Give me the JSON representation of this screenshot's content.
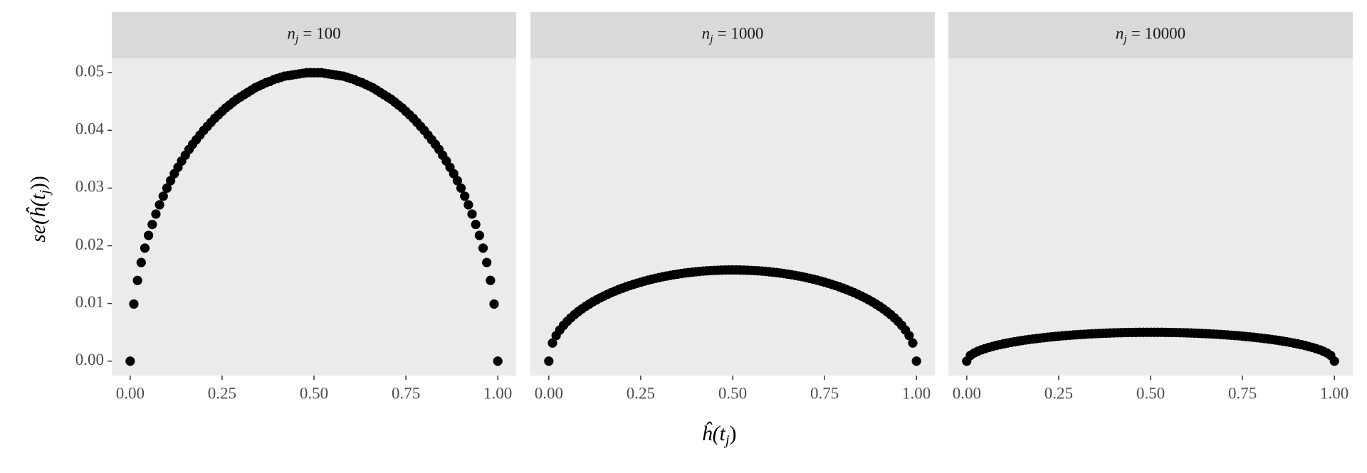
{
  "chart_data": [
    {
      "type": "scatter",
      "title": {
        "symbol": "n",
        "subscript": "j",
        "text": "= 100"
      },
      "color": "#000000",
      "x": [
        0,
        0.01,
        0.02,
        0.03,
        0.04,
        0.05,
        0.06,
        0.07,
        0.08,
        0.09,
        0.1,
        0.11,
        0.12,
        0.13,
        0.14,
        0.15,
        0.16,
        0.17,
        0.18,
        0.19,
        0.2,
        0.21,
        0.22,
        0.23,
        0.24,
        0.25,
        0.26,
        0.27,
        0.28,
        0.29,
        0.3,
        0.31,
        0.32,
        0.33,
        0.34,
        0.35,
        0.36,
        0.37,
        0.38,
        0.39,
        0.4,
        0.41,
        0.42,
        0.43,
        0.44,
        0.45,
        0.46,
        0.47,
        0.48,
        0.49,
        0.5,
        0.51,
        0.52,
        0.53,
        0.54,
        0.55,
        0.56,
        0.57,
        0.58,
        0.59,
        0.6,
        0.61,
        0.62,
        0.63,
        0.64,
        0.65,
        0.66,
        0.67,
        0.68,
        0.69,
        0.7,
        0.71,
        0.72,
        0.73,
        0.74,
        0.75,
        0.76,
        0.77,
        0.78,
        0.79,
        0.8,
        0.81,
        0.82,
        0.83,
        0.84,
        0.85,
        0.86,
        0.87,
        0.88,
        0.89,
        0.9,
        0.91,
        0.92,
        0.93,
        0.94,
        0.95,
        0.96,
        0.97,
        0.98,
        0.99,
        1
      ],
      "values": [
        0,
        0.0099,
        0.014,
        0.0171,
        0.0196,
        0.0218,
        0.0237,
        0.0255,
        0.0271,
        0.0286,
        0.03,
        0.0313,
        0.0325,
        0.0336,
        0.0347,
        0.0357,
        0.0367,
        0.0376,
        0.0384,
        0.0392,
        0.04,
        0.0407,
        0.0414,
        0.0421,
        0.0427,
        0.0433,
        0.0439,
        0.0444,
        0.0449,
        0.0454,
        0.0458,
        0.0462,
        0.0466,
        0.047,
        0.0474,
        0.0477,
        0.048,
        0.0483,
        0.0485,
        0.0488,
        0.049,
        0.0492,
        0.0494,
        0.0495,
        0.0496,
        0.0497,
        0.0498,
        0.0499,
        0.05,
        0.05,
        0.05,
        0.05,
        0.05,
        0.0499,
        0.0498,
        0.0497,
        0.0496,
        0.0495,
        0.0494,
        0.0492,
        0.049,
        0.0488,
        0.0485,
        0.0483,
        0.048,
        0.0477,
        0.0474,
        0.047,
        0.0466,
        0.0462,
        0.0458,
        0.0454,
        0.0449,
        0.0444,
        0.0439,
        0.0433,
        0.0427,
        0.0421,
        0.0414,
        0.0407,
        0.04,
        0.0392,
        0.0384,
        0.0376,
        0.0367,
        0.0357,
        0.0347,
        0.0336,
        0.0325,
        0.0313,
        0.03,
        0.0286,
        0.0271,
        0.0255,
        0.0237,
        0.0218,
        0.0196,
        0.0171,
        0.014,
        0.0099,
        0
      ],
      "xlim": [
        -0.05,
        1.05
      ],
      "xticks": [
        {
          "value": 0,
          "label": "0.00"
        },
        {
          "value": 0.25,
          "label": "0.25"
        },
        {
          "value": 0.5,
          "label": "0.50"
        },
        {
          "value": 0.75,
          "label": "0.75"
        },
        {
          "value": 1,
          "label": "1.00"
        }
      ],
      "ylim": [
        -0.0025,
        0.0525
      ],
      "yticks": [
        {
          "value": 0,
          "label": "0.00"
        },
        {
          "value": 0.01,
          "label": "0.01"
        },
        {
          "value": 0.02,
          "label": "0.02"
        },
        {
          "value": 0.03,
          "label": "0.03"
        },
        {
          "value": 0.04,
          "label": "0.04"
        },
        {
          "value": 0.05,
          "label": "0.05"
        }
      ]
    },
    {
      "type": "scatter",
      "title": {
        "symbol": "n",
        "subscript": "j",
        "text": "= 1000"
      },
      "color": "#000000",
      "x": [
        0,
        0.01,
        0.02,
        0.03,
        0.04,
        0.05,
        0.06,
        0.07,
        0.08,
        0.09,
        0.1,
        0.11,
        0.12,
        0.13,
        0.14,
        0.15,
        0.16,
        0.17,
        0.18,
        0.19,
        0.2,
        0.21,
        0.22,
        0.23,
        0.24,
        0.25,
        0.26,
        0.27,
        0.28,
        0.29,
        0.3,
        0.31,
        0.32,
        0.33,
        0.34,
        0.35,
        0.36,
        0.37,
        0.38,
        0.39,
        0.4,
        0.41,
        0.42,
        0.43,
        0.44,
        0.45,
        0.46,
        0.47,
        0.48,
        0.49,
        0.5,
        0.51,
        0.52,
        0.53,
        0.54,
        0.55,
        0.56,
        0.57,
        0.58,
        0.59,
        0.6,
        0.61,
        0.62,
        0.63,
        0.64,
        0.65,
        0.66,
        0.67,
        0.68,
        0.69,
        0.7,
        0.71,
        0.72,
        0.73,
        0.74,
        0.75,
        0.76,
        0.77,
        0.78,
        0.79,
        0.8,
        0.81,
        0.82,
        0.83,
        0.84,
        0.85,
        0.86,
        0.87,
        0.88,
        0.89,
        0.9,
        0.91,
        0.92,
        0.93,
        0.94,
        0.95,
        0.96,
        0.97,
        0.98,
        0.99,
        1
      ],
      "values": [
        0,
        0.00315,
        0.00443,
        0.00539,
        0.0062,
        0.00689,
        0.00751,
        0.00807,
        0.00858,
        0.00905,
        0.00949,
        0.00989,
        0.01028,
        0.01063,
        0.01097,
        0.01129,
        0.01159,
        0.01188,
        0.01215,
        0.01241,
        0.01265,
        0.01288,
        0.0131,
        0.01331,
        0.01351,
        0.01369,
        0.01387,
        0.01404,
        0.0142,
        0.01435,
        0.01449,
        0.01463,
        0.01475,
        0.01487,
        0.01498,
        0.01508,
        0.01518,
        0.01527,
        0.01535,
        0.01542,
        0.01549,
        0.01555,
        0.01561,
        0.01566,
        0.0157,
        0.01573,
        0.01576,
        0.01578,
        0.0158,
        0.01581,
        0.01581,
        0.01581,
        0.0158,
        0.01578,
        0.01576,
        0.01573,
        0.0157,
        0.01566,
        0.01561,
        0.01555,
        0.01549,
        0.01542,
        0.01535,
        0.01527,
        0.01518,
        0.01508,
        0.01498,
        0.01487,
        0.01475,
        0.01463,
        0.01449,
        0.01435,
        0.0142,
        0.01404,
        0.01387,
        0.01369,
        0.01351,
        0.01331,
        0.0131,
        0.01288,
        0.01265,
        0.01241,
        0.01215,
        0.01188,
        0.01159,
        0.01129,
        0.01097,
        0.01063,
        0.01028,
        0.00989,
        0.00949,
        0.00905,
        0.00858,
        0.00807,
        0.00751,
        0.00689,
        0.0062,
        0.00539,
        0.00443,
        0.00315,
        0
      ],
      "xlim": [
        -0.05,
        1.05
      ],
      "xticks": [
        {
          "value": 0,
          "label": "0.00"
        },
        {
          "value": 0.25,
          "label": "0.25"
        },
        {
          "value": 0.5,
          "label": "0.50"
        },
        {
          "value": 0.75,
          "label": "0.75"
        },
        {
          "value": 1,
          "label": "1.00"
        }
      ],
      "ylim": [
        -0.0025,
        0.0525
      ]
    },
    {
      "type": "scatter",
      "title": {
        "symbol": "n",
        "subscript": "j",
        "text": "= 10000"
      },
      "color": "#000000",
      "x": [
        0,
        0.01,
        0.02,
        0.03,
        0.04,
        0.05,
        0.06,
        0.07,
        0.08,
        0.09,
        0.1,
        0.11,
        0.12,
        0.13,
        0.14,
        0.15,
        0.16,
        0.17,
        0.18,
        0.19,
        0.2,
        0.21,
        0.22,
        0.23,
        0.24,
        0.25,
        0.26,
        0.27,
        0.28,
        0.29,
        0.3,
        0.31,
        0.32,
        0.33,
        0.34,
        0.35,
        0.36,
        0.37,
        0.38,
        0.39,
        0.4,
        0.41,
        0.42,
        0.43,
        0.44,
        0.45,
        0.46,
        0.47,
        0.48,
        0.49,
        0.5,
        0.51,
        0.52,
        0.53,
        0.54,
        0.55,
        0.56,
        0.57,
        0.58,
        0.59,
        0.6,
        0.61,
        0.62,
        0.63,
        0.64,
        0.65,
        0.66,
        0.67,
        0.68,
        0.69,
        0.7,
        0.71,
        0.72,
        0.73,
        0.74,
        0.75,
        0.76,
        0.77,
        0.78,
        0.79,
        0.8,
        0.81,
        0.82,
        0.83,
        0.84,
        0.85,
        0.86,
        0.87,
        0.88,
        0.89,
        0.9,
        0.91,
        0.92,
        0.93,
        0.94,
        0.95,
        0.96,
        0.97,
        0.98,
        0.99,
        1
      ],
      "values": [
        0,
        0.00099,
        0.0014,
        0.00171,
        0.00196,
        0.00218,
        0.00237,
        0.00255,
        0.00271,
        0.00286,
        0.003,
        0.00313,
        0.00325,
        0.00336,
        0.00347,
        0.00357,
        0.00367,
        0.00376,
        0.00384,
        0.00392,
        0.004,
        0.00407,
        0.00414,
        0.00421,
        0.00427,
        0.00433,
        0.00439,
        0.00444,
        0.00449,
        0.00454,
        0.00458,
        0.00462,
        0.00466,
        0.0047,
        0.00474,
        0.00477,
        0.0048,
        0.00483,
        0.00485,
        0.00488,
        0.0049,
        0.00492,
        0.00494,
        0.00495,
        0.00496,
        0.00497,
        0.00498,
        0.00499,
        0.005,
        0.005,
        0.005,
        0.005,
        0.005,
        0.00499,
        0.00498,
        0.00497,
        0.00496,
        0.00495,
        0.00494,
        0.00492,
        0.0049,
        0.00488,
        0.00485,
        0.00483,
        0.0048,
        0.00477,
        0.00474,
        0.0047,
        0.00466,
        0.00462,
        0.00458,
        0.00454,
        0.00449,
        0.00444,
        0.00439,
        0.00433,
        0.00427,
        0.00421,
        0.00414,
        0.00407,
        0.004,
        0.00392,
        0.00384,
        0.00376,
        0.00367,
        0.00357,
        0.00347,
        0.00336,
        0.00325,
        0.00313,
        0.003,
        0.00286,
        0.00271,
        0.00255,
        0.00237,
        0.00218,
        0.00196,
        0.00171,
        0.0014,
        0.00099,
        0
      ],
      "xlim": [
        -0.05,
        1.05
      ],
      "xticks": [
        {
          "value": 0,
          "label": "0.00"
        },
        {
          "value": 0.25,
          "label": "0.25"
        },
        {
          "value": 0.5,
          "label": "0.50"
        },
        {
          "value": 0.75,
          "label": "0.75"
        },
        {
          "value": 1,
          "label": "1.00"
        }
      ],
      "ylim": [
        -0.0025,
        0.0525
      ]
    }
  ],
  "xlabel": {
    "text": "ĥ(t",
    "subscript": "j",
    "close": ")"
  },
  "ylabel": {
    "text": "se(ĥ(t",
    "subscript": "j",
    "close": "))"
  }
}
